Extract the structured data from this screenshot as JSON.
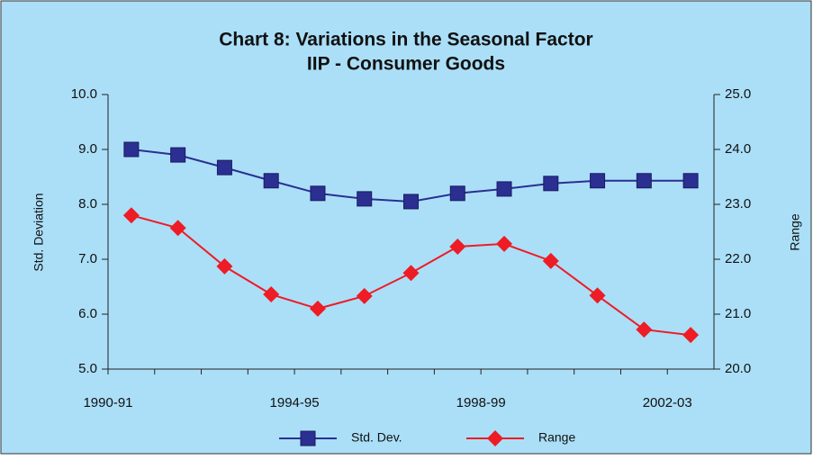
{
  "chart_data": {
    "type": "line",
    "title": "Chart 8: Variations in the Seasonal  Factor",
    "subtitle": "IIP - Consumer Goods",
    "y_label": "Std. Deviation",
    "y2_label": "Range",
    "categories": [
      "1990-91",
      null,
      null,
      null,
      "1994-95",
      null,
      null,
      null,
      "1998-99",
      null,
      null,
      null,
      "2002-03"
    ],
    "series": [
      {
        "name": "Std. Dev.",
        "color": "#2b2f92",
        "marker": "square",
        "values": [
          9.0,
          8.9,
          8.67,
          8.43,
          8.2,
          8.1,
          8.05,
          8.2,
          8.28,
          8.38,
          8.43,
          8.43,
          8.43
        ]
      },
      {
        "name": "Range",
        "color": "#ee1c25",
        "marker": "diamond",
        "axis": "y2",
        "values": [
          22.8,
          22.57,
          21.87,
          21.36,
          21.1,
          21.33,
          21.75,
          22.23,
          22.28,
          21.97,
          21.34,
          20.72,
          20.62
        ]
      }
    ],
    "ylim": [
      5,
      10
    ],
    "yticks": [
      {
        "value": 5,
        "label": "5.0"
      },
      {
        "value": 6,
        "label": "6.0"
      },
      {
        "value": 7,
        "label": "7.0"
      },
      {
        "value": 8,
        "label": "8.0"
      },
      {
        "value": 9,
        "label": "9.0"
      },
      {
        "value": 10,
        "label": "10.0"
      }
    ],
    "y2lim": [
      20,
      25
    ],
    "y2ticks": [
      {
        "value": 20,
        "label": "20.0"
      },
      {
        "value": 21,
        "label": "21.0"
      },
      {
        "value": 22,
        "label": "22.0"
      },
      {
        "value": 23,
        "label": "23.0"
      },
      {
        "value": 24,
        "label": "24.0"
      },
      {
        "value": 25,
        "label": "25.0"
      }
    ],
    "legend": "bottom"
  }
}
